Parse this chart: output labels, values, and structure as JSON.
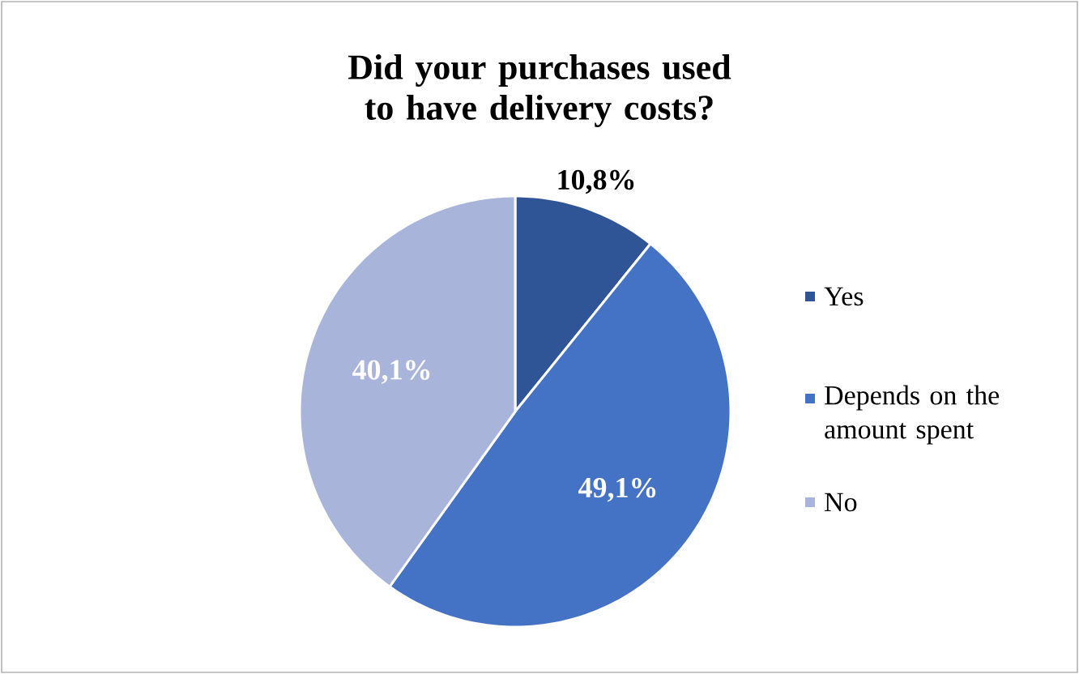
{
  "chart_data": {
    "type": "pie",
    "title": "Did your purchases used to have delivery costs?",
    "categories": [
      "Yes",
      "Depends on the amount spent",
      "No"
    ],
    "values": [
      10.8,
      49.1,
      40.1
    ],
    "value_labels": [
      "10,8%",
      "49,1%",
      "40,1%"
    ],
    "colors": [
      "#2f5597",
      "#4472c4",
      "#a9b4da"
    ],
    "legend": "right"
  }
}
